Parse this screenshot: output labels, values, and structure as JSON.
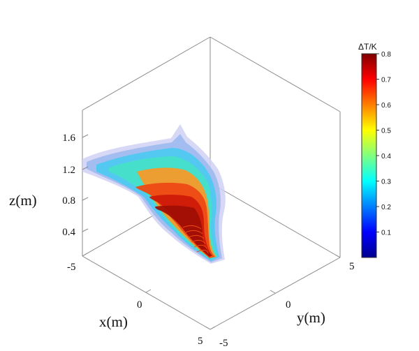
{
  "chart_data": {
    "type": "heatmap",
    "projection": "3d-isometric-box",
    "xlabel": "x(m)",
    "ylabel": "y(m)",
    "zlabel": "z(m)",
    "x_ticks": [
      "-5",
      "0",
      "5"
    ],
    "y_ticks": [
      "-5",
      "0",
      "5"
    ],
    "z_ticks": [
      "0.4",
      "0.8",
      "1.2",
      "1.6"
    ],
    "xlim": [
      -5,
      5
    ],
    "ylim": [
      -5,
      5
    ],
    "colorbar": {
      "title": "ΔT/K",
      "min": 0,
      "max": 0.8,
      "ticks": [
        "0.1",
        "0.2",
        "0.3",
        "0.4",
        "0.5",
        "0.6",
        "0.7",
        "0.8"
      ],
      "colormap": "jet"
    },
    "contour_colors": [
      "#d0d0f5",
      "#9ab8f0",
      "#4fc8f0",
      "#46e0c8",
      "#f59a2a",
      "#ee4a14",
      "#cc1a08",
      "#a00f05"
    ]
  }
}
